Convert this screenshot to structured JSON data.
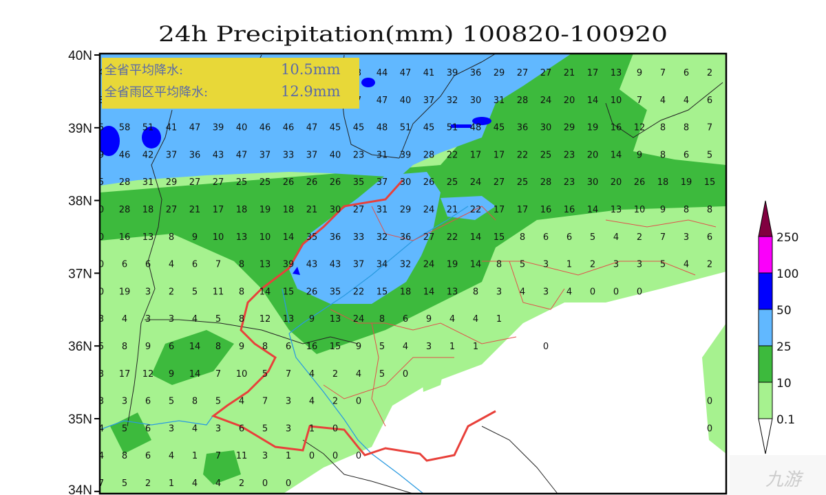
{
  "title": "24h Precipitation(mm) 100820-100920",
  "info_box": {
    "line1_label": "全省平均降水:",
    "line1_value": "10.5mm",
    "line2_label": "全省雨区平均降水:",
    "line2_value": "12.9mm",
    "background": "#e8d838"
  },
  "latitude_labels": [
    "40N",
    "39N",
    "38N",
    "37N",
    "36N",
    "35N",
    "34N"
  ],
  "legend": {
    "thresholds": [
      "0.1",
      "10",
      "25",
      "50",
      "100",
      "250"
    ],
    "colors": {
      "below_0.1": "#ffffff",
      "0.1-10": "#a6f28f",
      "10-25": "#3dba3d",
      "25-50": "#61b8ff",
      "50-100": "#0000fe",
      "100-250": "#fa00fa",
      "above_250": "#810040"
    }
  },
  "grid_values": [
    [
      "4",
      "",
      "",
      "",
      "",
      "",
      "",
      "",
      "",
      "",
      "",
      "3",
      "44",
      "47",
      "41",
      "39",
      "36",
      "29",
      "27",
      "27",
      "21",
      "17",
      "13",
      "9",
      "7",
      "6",
      "2"
    ],
    [
      "8",
      "",
      "",
      "",
      "",
      "",
      "",
      "",
      "",
      "",
      "",
      "7",
      "47",
      "40",
      "37",
      "32",
      "30",
      "31",
      "28",
      "24",
      "20",
      "14",
      "10",
      "7",
      "4",
      "4",
      "6"
    ],
    [
      "5",
      "58",
      "51",
      "41",
      "47",
      "39",
      "40",
      "46",
      "46",
      "47",
      "45",
      "45",
      "48",
      "51",
      "45",
      "51",
      "48",
      "45",
      "36",
      "30",
      "29",
      "19",
      "16",
      "12",
      "8",
      "8",
      "7"
    ],
    [
      "9",
      "46",
      "42",
      "37",
      "36",
      "43",
      "47",
      "37",
      "33",
      "37",
      "40",
      "23",
      "31",
      "39",
      "28",
      "22",
      "17",
      "17",
      "22",
      "25",
      "23",
      "20",
      "14",
      "9",
      "8",
      "6",
      "5"
    ],
    [
      "5",
      "28",
      "31",
      "29",
      "27",
      "27",
      "25",
      "25",
      "26",
      "26",
      "26",
      "35",
      "37",
      "30",
      "26",
      "25",
      "24",
      "27",
      "25",
      "28",
      "23",
      "30",
      "20",
      "26",
      "18",
      "19",
      "15"
    ],
    [
      "0",
      "28",
      "18",
      "27",
      "21",
      "17",
      "18",
      "19",
      "18",
      "21",
      "30",
      "27",
      "31",
      "29",
      "24",
      "21",
      "22",
      "17",
      "17",
      "16",
      "16",
      "14",
      "13",
      "10",
      "9",
      "8",
      "8"
    ],
    [
      "0",
      "16",
      "13",
      "8",
      "9",
      "10",
      "13",
      "10",
      "14",
      "35",
      "36",
      "33",
      "32",
      "36",
      "27",
      "22",
      "14",
      "15",
      "8",
      "6",
      "6",
      "5",
      "4",
      "2",
      "7",
      "3",
      "6"
    ],
    [
      "0",
      "6",
      "6",
      "4",
      "6",
      "7",
      "8",
      "13",
      "39",
      "43",
      "43",
      "37",
      "34",
      "32",
      "24",
      "19",
      "14",
      "8",
      "5",
      "3",
      "1",
      "2",
      "3",
      "3",
      "5",
      "4",
      "2"
    ],
    [
      "0",
      "19",
      "3",
      "2",
      "5",
      "11",
      "8",
      "14",
      "15",
      "26",
      "35",
      "22",
      "15",
      "18",
      "14",
      "13",
      "8",
      "3",
      "4",
      "3",
      "4",
      "0",
      "0",
      "0",
      "",
      "",
      ""
    ],
    [
      "3",
      "4",
      "3",
      "3",
      "4",
      "5",
      "8",
      "12",
      "13",
      "9",
      "13",
      "24",
      "8",
      "6",
      "9",
      "4",
      "4",
      "1",
      "",
      "",
      "",
      "",
      "",
      "",
      "",
      "",
      ""
    ],
    [
      "5",
      "8",
      "9",
      "6",
      "14",
      "8",
      "9",
      "8",
      "6",
      "16",
      "15",
      "9",
      "5",
      "4",
      "3",
      "1",
      "1",
      "",
      "",
      "0",
      "",
      "",
      "",
      "",
      "",
      "",
      ""
    ],
    [
      "3",
      "17",
      "12",
      "9",
      "14",
      "7",
      "10",
      "5",
      "7",
      "4",
      "2",
      "4",
      "5",
      "0",
      "",
      "",
      "",
      "",
      "",
      "",
      "",
      "",
      "",
      "",
      "",
      "",
      ""
    ],
    [
      "3",
      "3",
      "6",
      "5",
      "8",
      "5",
      "4",
      "7",
      "3",
      "4",
      "2",
      "0",
      "",
      "",
      "",
      "",
      "",
      "",
      "",
      "",
      "",
      "",
      "",
      "",
      "",
      "",
      "0"
    ],
    [
      "4",
      "5",
      "6",
      "3",
      "4",
      "3",
      "6",
      "5",
      "3",
      "1",
      "0",
      "",
      "",
      "",
      "",
      "",
      "",
      "",
      "",
      "",
      "",
      "",
      "",
      "",
      "",
      "",
      "0"
    ],
    [
      "4",
      "8",
      "6",
      "4",
      "1",
      "7",
      "11",
      "3",
      "1",
      "0",
      "0",
      "0",
      "",
      "",
      "",
      "",
      "",
      "",
      "",
      "",
      "",
      "",
      "",
      "",
      "",
      "",
      ""
    ],
    [
      "7",
      "5",
      "2",
      "1",
      "4",
      "4",
      "2",
      "0",
      "0",
      "",
      "",
      "",
      "",
      "",
      "",
      "",
      "",
      "",
      "",
      "",
      "",
      "",
      "",
      "",
      "",
      "",
      ""
    ]
  ],
  "watermark": "九游"
}
